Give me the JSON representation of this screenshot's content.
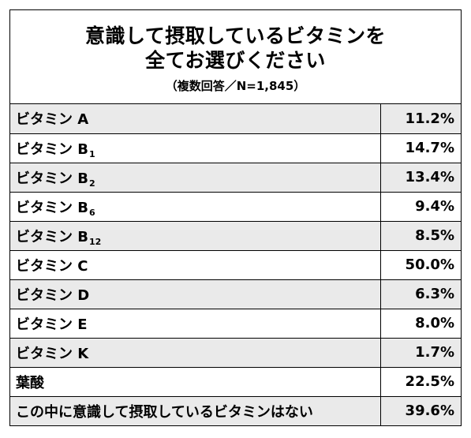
{
  "chart_data": {
    "type": "table",
    "title_lines": [
      "意識して摂取しているビタミンを",
      "全てお選びください"
    ],
    "subtitle": "（複数回答／N=1,845）",
    "rows": [
      {
        "name": "ビタミン A",
        "sub": "",
        "value": "11.2%"
      },
      {
        "name": "ビタミン B",
        "sub": "1",
        "value": "14.7%"
      },
      {
        "name": "ビタミン B",
        "sub": "2",
        "value": "13.4%"
      },
      {
        "name": "ビタミン B",
        "sub": "6",
        "value": "9.4%"
      },
      {
        "name": "ビタミン B",
        "sub": "12",
        "value": "8.5%"
      },
      {
        "name": "ビタミン C",
        "sub": "",
        "value": "50.0%"
      },
      {
        "name": "ビタミン D",
        "sub": "",
        "value": "6.3%"
      },
      {
        "name": "ビタミン E",
        "sub": "",
        "value": "8.0%"
      },
      {
        "name": "ビタミン K",
        "sub": "",
        "value": "1.7%"
      },
      {
        "name": "葉酸",
        "sub": "",
        "value": "22.5%"
      },
      {
        "name": "この中に意識して摂取しているビタミンはない",
        "sub": "",
        "value": "39.6%"
      }
    ],
    "row_shading": "#eaeaea"
  }
}
